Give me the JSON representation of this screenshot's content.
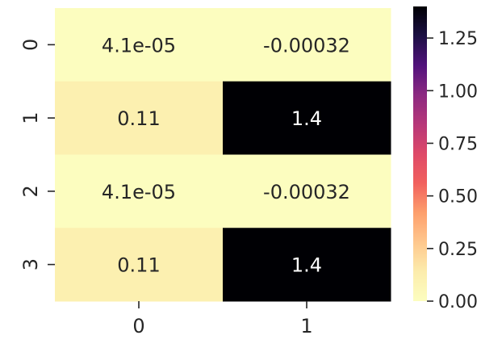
{
  "chart_data": {
    "type": "heatmap",
    "title": "",
    "xlabel": "",
    "ylabel": "",
    "x_categories": [
      "0",
      "1"
    ],
    "y_categories": [
      "0",
      "1",
      "2",
      "3"
    ],
    "values": [
      [
        4.1e-05,
        -0.00032
      ],
      [
        0.11,
        1.4
      ],
      [
        4.1e-05,
        -0.00032
      ],
      [
        0.11,
        1.4
      ]
    ],
    "annotations": [
      [
        "4.1e-05",
        "-0.00032"
      ],
      [
        "0.11",
        "1.4"
      ],
      [
        "4.1e-05",
        "-0.00032"
      ],
      [
        "0.11",
        "1.4"
      ]
    ],
    "colorbar": {
      "colormap": "magma_r",
      "vmin": 0.0,
      "vmax": 1.4,
      "ticks": [
        0.0,
        0.25,
        0.5,
        0.75,
        1.0,
        1.25
      ],
      "tick_labels": [
        "0.00",
        "0.25",
        "0.50",
        "0.75",
        "1.00",
        "1.25"
      ]
    },
    "grid": false,
    "legend": "colorbar-right"
  }
}
